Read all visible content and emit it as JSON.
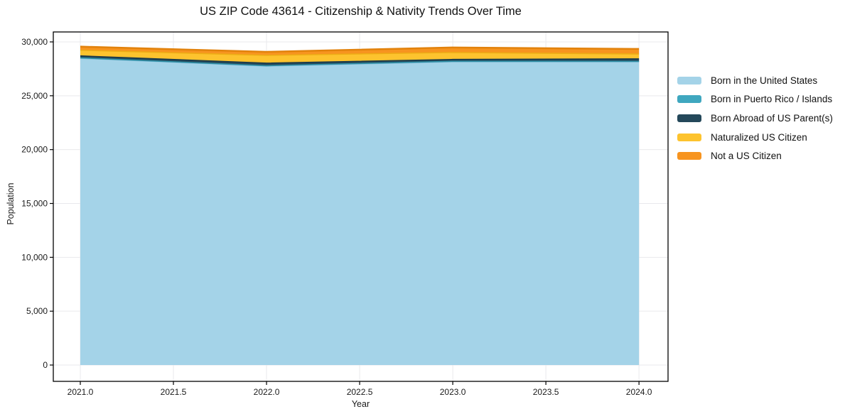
{
  "chart_data": {
    "type": "area",
    "stacked": true,
    "title": "US ZIP Code 43614 - Citizenship & Nativity Trends Over Time",
    "xlabel": "Year",
    "ylabel": "Population",
    "x": [
      2021,
      2022,
      2023,
      2024
    ],
    "series": [
      {
        "name": "Born in the United States",
        "color": "#a4d3e8",
        "edge": "#7fb9d6",
        "values": [
          28480,
          27760,
          28160,
          28150
        ]
      },
      {
        "name": "Born in Puerto Rico / Islands",
        "color": "#3fa7bf",
        "edge": "#2d8fa5",
        "values": [
          40,
          30,
          40,
          45
        ]
      },
      {
        "name": "Born Abroad of US Parent(s)",
        "color": "#24485a",
        "edge": "#1b3a49",
        "values": [
          180,
          240,
          170,
          230
        ]
      },
      {
        "name": "Naturalized US Citizen",
        "color": "#fdc32e",
        "edge": "#edac15",
        "values": [
          530,
          720,
          650,
          450
        ]
      },
      {
        "name": "Not a US Citizen",
        "color": "#f7941f",
        "edge": "#e2820c",
        "values": [
          330,
          330,
          460,
          470
        ]
      }
    ],
    "xticks": [
      {
        "v": 2021.0,
        "label": "2021.0"
      },
      {
        "v": 2021.5,
        "label": "2021.5"
      },
      {
        "v": 2022.0,
        "label": "2022.0"
      },
      {
        "v": 2022.5,
        "label": "2022.5"
      },
      {
        "v": 2023.0,
        "label": "2023.0"
      },
      {
        "v": 2023.5,
        "label": "2023.5"
      },
      {
        "v": 2024.0,
        "label": "2024.0"
      }
    ],
    "yticks": [
      {
        "v": 0,
        "label": "0"
      },
      {
        "v": 5000,
        "label": "5,000"
      },
      {
        "v": 10000,
        "label": "10,000"
      },
      {
        "v": 15000,
        "label": "15,000"
      },
      {
        "v": 20000,
        "label": "20,000"
      },
      {
        "v": 25000,
        "label": "25,000"
      },
      {
        "v": 30000,
        "label": "30,000"
      }
    ],
    "xlim": [
      2020.855,
      2024.156
    ],
    "ylim": [
      -1516,
      30923
    ],
    "grid": true,
    "grid_color": "#e9e9ec",
    "frame_color": "#000000",
    "legend_position": "right"
  }
}
